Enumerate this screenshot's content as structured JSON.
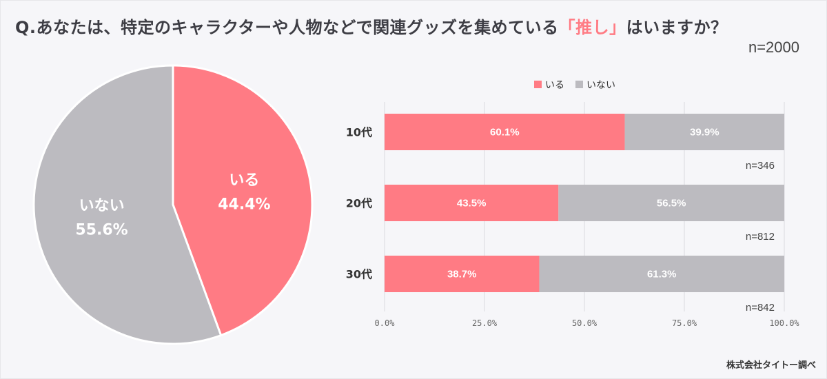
{
  "title": {
    "prefix": "Q.あなたは、特定のキャラクターや人物などで関連グッズを集めている",
    "highlight": "「推し」",
    "suffix": "はいますか？"
  },
  "sample_total": "n=2000",
  "credit": "株式会社タイトー調べ",
  "colors": {
    "yes": "#ff7b84",
    "no": "#bcbbc0",
    "highlight": "#ff7b84",
    "grid": "#d9d9de",
    "background": "#f6f6f9"
  },
  "chart_data": [
    {
      "type": "pie",
      "slices": [
        {
          "label": "いる",
          "value": 44.4,
          "value_label": "44.4%"
        },
        {
          "label": "いない",
          "value": 55.6,
          "value_label": "55.6%"
        }
      ]
    },
    {
      "type": "bar",
      "orientation": "horizontal",
      "stacked": true,
      "legend": [
        "いる",
        "いない"
      ],
      "legend_position": "top",
      "categories": [
        "10代",
        "20代",
        "30代"
      ],
      "series": [
        {
          "name": "いる",
          "values": [
            60.1,
            43.5,
            38.7
          ],
          "labels": [
            "60.1%",
            "43.5%",
            "38.7%"
          ]
        },
        {
          "name": "いない",
          "values": [
            39.9,
            56.5,
            61.3
          ],
          "labels": [
            "39.9%",
            "56.5%",
            "61.3%"
          ]
        }
      ],
      "sample_sizes": [
        "n=346",
        "n=812",
        "n=842"
      ],
      "xlim": [
        0,
        100
      ],
      "ticks": [
        "0.0%",
        "25.0%",
        "50.0%",
        "75.0%",
        "100.0%"
      ],
      "grid": true
    }
  ]
}
